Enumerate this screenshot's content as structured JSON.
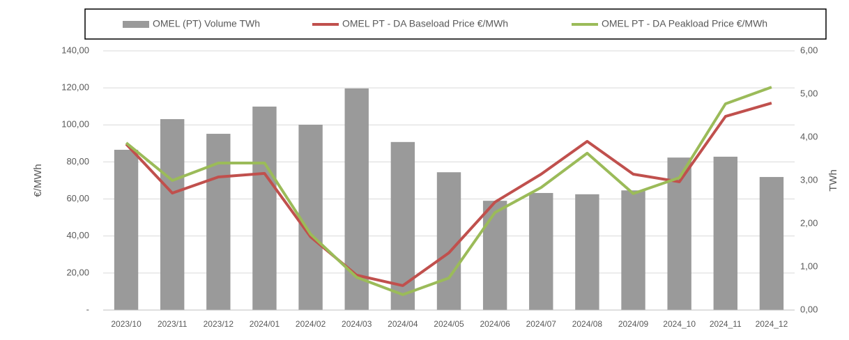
{
  "chart_data": {
    "type": "bar",
    "categories": [
      "2023/10",
      "2023/11",
      "2023/12",
      "2024/01",
      "2024/02",
      "2024/03",
      "2024/04",
      "2024/05",
      "2024/06",
      "2024/07",
      "2024/08",
      "2024/09",
      "2024_10",
      "2024_11",
      "2024_12"
    ],
    "series": [
      {
        "name": "OMEL (PT) Volume TWh",
        "type": "bar",
        "axis": "y2",
        "color": "#9a9a9a",
        "values": [
          3.71,
          4.42,
          4.08,
          4.71,
          4.29,
          5.13,
          3.89,
          3.19,
          2.53,
          2.71,
          2.68,
          2.77,
          3.53,
          3.55,
          3.08
        ]
      },
      {
        "name": "OMEL PT - DA Baseload Price €/MWh",
        "type": "line",
        "color": "#c0504d",
        "values": [
          89.6,
          63.2,
          71.9,
          73.8,
          39.5,
          18.8,
          13.2,
          30.9,
          58.3,
          73.4,
          91.1,
          73.4,
          69.3,
          104.6,
          111.8
        ]
      },
      {
        "name": "OMEL PT - DA Peakload Price  €/MWh",
        "type": "line",
        "color": "#9bbb59",
        "values": [
          90.3,
          70.0,
          79.4,
          79.4,
          41.0,
          17.7,
          8.3,
          17.3,
          52.7,
          66.2,
          84.7,
          62.9,
          71.5,
          111.4,
          120.4
        ]
      }
    ],
    "ylabel": "€/MWh",
    "y2label": "TWh",
    "ylim": [
      0,
      140
    ],
    "yticks": [
      {
        "value": 0,
        "label": "-"
      },
      {
        "value": 20,
        "label": "20,00"
      },
      {
        "value": 40,
        "label": "40,00"
      },
      {
        "value": 60,
        "label": "60,00"
      },
      {
        "value": 80,
        "label": "80,00"
      },
      {
        "value": 100,
        "label": "100,00"
      },
      {
        "value": 120,
        "label": "120,00"
      },
      {
        "value": 140,
        "label": "140,00"
      }
    ],
    "y2lim": [
      0,
      6
    ],
    "y2ticks": [
      {
        "value": 0,
        "label": "0,00"
      },
      {
        "value": 1,
        "label": "1,00"
      },
      {
        "value": 2,
        "label": "2,00"
      },
      {
        "value": 3,
        "label": "3,00"
      },
      {
        "value": 4,
        "label": "4,00"
      },
      {
        "value": 5,
        "label": "5,00"
      },
      {
        "value": 6,
        "label": "6,00"
      }
    ],
    "grid": true,
    "legend": "top"
  }
}
